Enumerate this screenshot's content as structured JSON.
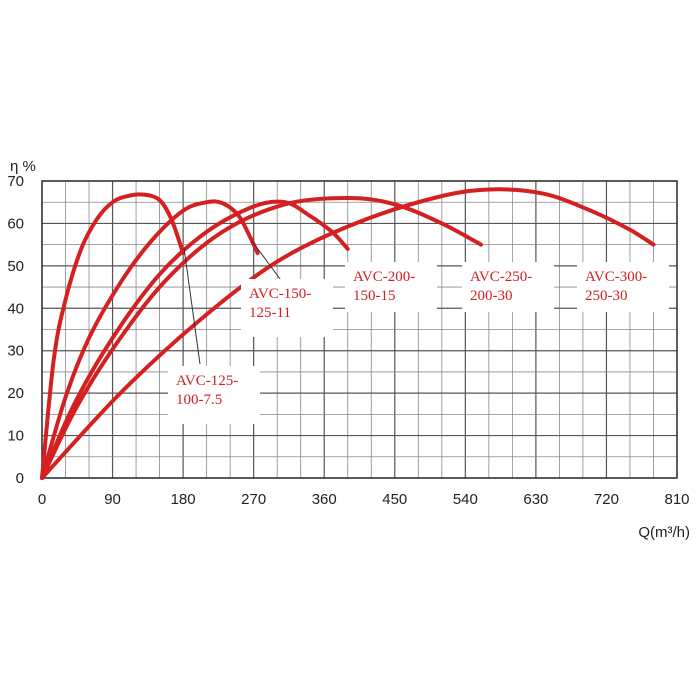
{
  "chart_data": {
    "type": "line",
    "ylabel": "η %",
    "xlabel": "Q(m³/h)",
    "xlim": [
      0,
      810
    ],
    "ylim": [
      0,
      70
    ],
    "x_ticks": [
      "0",
      "90",
      "180",
      "270",
      "360",
      "450",
      "540",
      "630",
      "720",
      "810"
    ],
    "y_ticks": [
      "0",
      "10",
      "20",
      "30",
      "40",
      "50",
      "60",
      "70"
    ],
    "grid": true,
    "line_color": "#d42020",
    "series": [
      {
        "name": "AVC-125-100-7.5",
        "label_lines": [
          "AVC-125-",
          "100-7.5"
        ],
        "points": [
          [
            0,
            0
          ],
          [
            15,
            28
          ],
          [
            30,
            42
          ],
          [
            50,
            54
          ],
          [
            70,
            61
          ],
          [
            90,
            65
          ],
          [
            110,
            66.5
          ],
          [
            130,
            66.8
          ],
          [
            150,
            65.5
          ],
          [
            165,
            61
          ],
          [
            180,
            53
          ]
        ]
      },
      {
        "name": "AVC-150-125-11",
        "label_lines": [
          "AVC-150-",
          "125-11"
        ],
        "points": [
          [
            0,
            0
          ],
          [
            30,
            19
          ],
          [
            60,
            33
          ],
          [
            100,
            46
          ],
          [
            140,
            56
          ],
          [
            180,
            63
          ],
          [
            210,
            65
          ],
          [
            230,
            64.8
          ],
          [
            250,
            62
          ],
          [
            265,
            57
          ],
          [
            275,
            53
          ]
        ]
      },
      {
        "name": "AVC-200-150-15",
        "label_lines": [
          "AVC-200-",
          "150-15"
        ],
        "points": [
          [
            0,
            0
          ],
          [
            40,
            17
          ],
          [
            90,
            33
          ],
          [
            150,
            48
          ],
          [
            210,
            58
          ],
          [
            270,
            64
          ],
          [
            310,
            65
          ],
          [
            340,
            62
          ],
          [
            370,
            58
          ],
          [
            390,
            54
          ]
        ]
      },
      {
        "name": "AVC-250-200-30",
        "label_lines": [
          "AVC-250-",
          "200-30"
        ],
        "points": [
          [
            0,
            0
          ],
          [
            45,
            17
          ],
          [
            100,
            33
          ],
          [
            160,
            47
          ],
          [
            230,
            58
          ],
          [
            310,
            64.5
          ],
          [
            390,
            66
          ],
          [
            450,
            64.5
          ],
          [
            510,
            60
          ],
          [
            560,
            55
          ]
        ]
      },
      {
        "name": "AVC-300-250-30",
        "label_lines": [
          "AVC-300-",
          "250-30"
        ],
        "points": [
          [
            0,
            0
          ],
          [
            100,
            20
          ],
          [
            200,
            37
          ],
          [
            300,
            51
          ],
          [
            400,
            60
          ],
          [
            500,
            66
          ],
          [
            570,
            68
          ],
          [
            640,
            67
          ],
          [
            700,
            63
          ],
          [
            750,
            58.5
          ],
          [
            780,
            55
          ]
        ]
      }
    ]
  }
}
